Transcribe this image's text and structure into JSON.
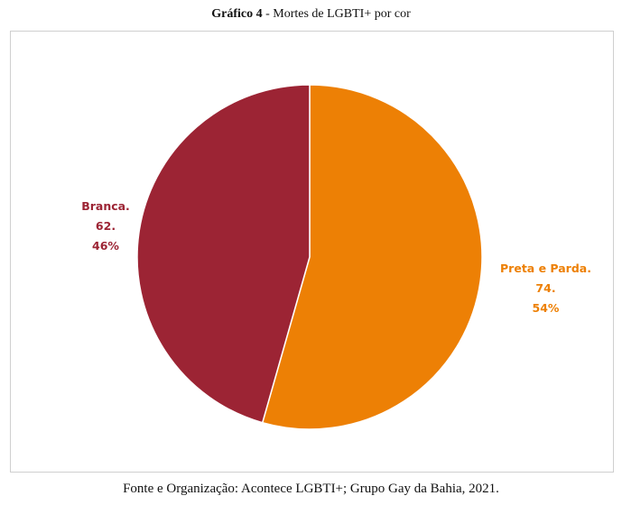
{
  "figure": {
    "title_bold": "Gráfico 4",
    "title_rest": " - Mortes de LGBTI+ por cor",
    "source": "Fonte e Organização: Acontece LGBTI+; Grupo Gay da Bahia, 2021."
  },
  "chart_data": {
    "type": "pie",
    "title": "Gráfico 4 - Mortes de LGBTI+ por cor",
    "start_angle_deg": 0,
    "direction": "clockwise",
    "legend": "none",
    "slices": [
      {
        "label": "Preta e Parda.",
        "value": 74,
        "value_text": "74.",
        "percent_text": "54%",
        "color": "#ED8005"
      },
      {
        "label": "Branca.",
        "value": 62,
        "value_text": "62.",
        "percent_text": "46%",
        "color": "#9C2434"
      }
    ]
  }
}
